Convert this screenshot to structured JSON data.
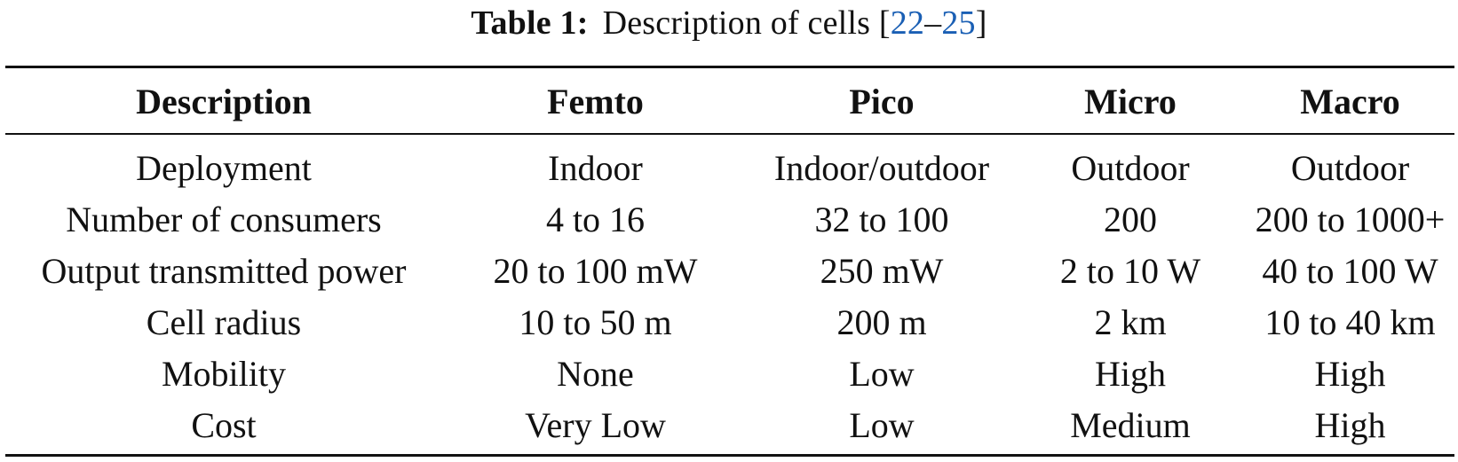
{
  "caption": {
    "label": "Table 1:",
    "text": "Description of cells [",
    "ref_start": "22",
    "ref_dash": "–",
    "ref_end": "25",
    "close": "]"
  },
  "table": {
    "headers": [
      "Description",
      "Femto",
      "Pico",
      "Micro",
      "Macro"
    ],
    "rows": [
      [
        "Deployment",
        "Indoor",
        "Indoor/outdoor",
        "Outdoor",
        "Outdoor"
      ],
      [
        "Number of consumers",
        "4 to 16",
        "32 to 100",
        "200",
        "200 to 1000+"
      ],
      [
        "Output transmitted power",
        "20 to 100 mW",
        "250 mW",
        "2 to 10 W",
        "40 to 100 W"
      ],
      [
        "Cell radius",
        "10 to 50 m",
        "200 m",
        "2 km",
        "10 to 40 km"
      ],
      [
        "Mobility",
        "None",
        "Low",
        "High",
        "High"
      ],
      [
        "Cost",
        "Very Low",
        "Low",
        "Medium",
        "High"
      ]
    ]
  },
  "colors": {
    "text": "#111111",
    "reference_link": "#1a5fb4"
  }
}
